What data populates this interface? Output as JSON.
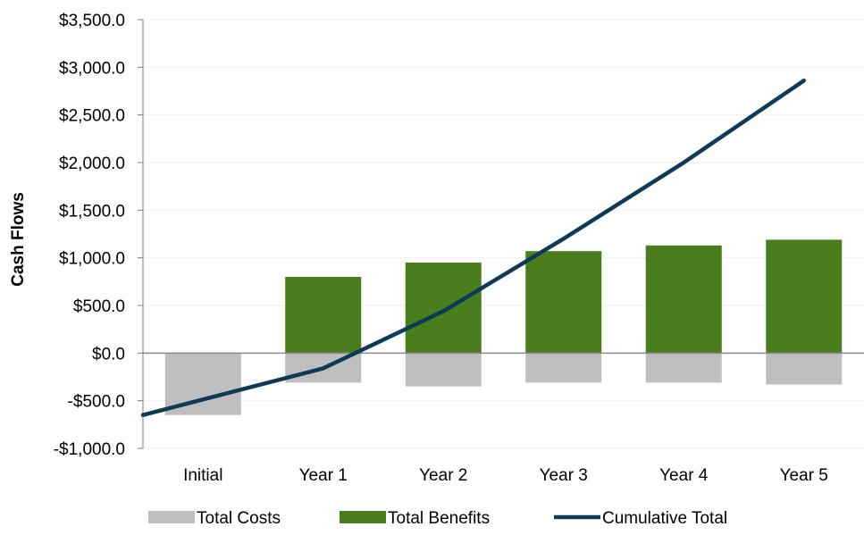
{
  "chart_data": {
    "type": "bar",
    "title": "",
    "xlabel": "",
    "ylabel": "Cash Flows",
    "ylim": [
      -1000,
      3500
    ],
    "yticks": [
      -1000,
      -500,
      0,
      500,
      1000,
      1500,
      2000,
      2500,
      3000,
      3500
    ],
    "ytick_labels": [
      "-$1,000.0",
      "-$500.0",
      "$0.0",
      "$500.0",
      "$1,000.0",
      "$1,500.0",
      "$2,000.0",
      "$2,500.0",
      "$3,000.0",
      "$3,500.0"
    ],
    "categories": [
      "Initial",
      "Year 1",
      "Year 2",
      "Year 3",
      "Year 4",
      "Year 5"
    ],
    "grid": true,
    "legend_position": "bottom",
    "series": [
      {
        "name": "Total Costs",
        "kind": "bar",
        "color": "#bfbfbf",
        "values": [
          -650,
          -310,
          -350,
          -310,
          -310,
          -330
        ]
      },
      {
        "name": "Total Benefits",
        "kind": "bar",
        "color": "#4a7d1c",
        "values": [
          0,
          800,
          950,
          1070,
          1130,
          1190
        ]
      },
      {
        "name": "Cumulative Total",
        "kind": "line",
        "color": "#0e3a55",
        "values": [
          -650,
          -160,
          440,
          1200,
          2000,
          2860
        ]
      }
    ]
  }
}
